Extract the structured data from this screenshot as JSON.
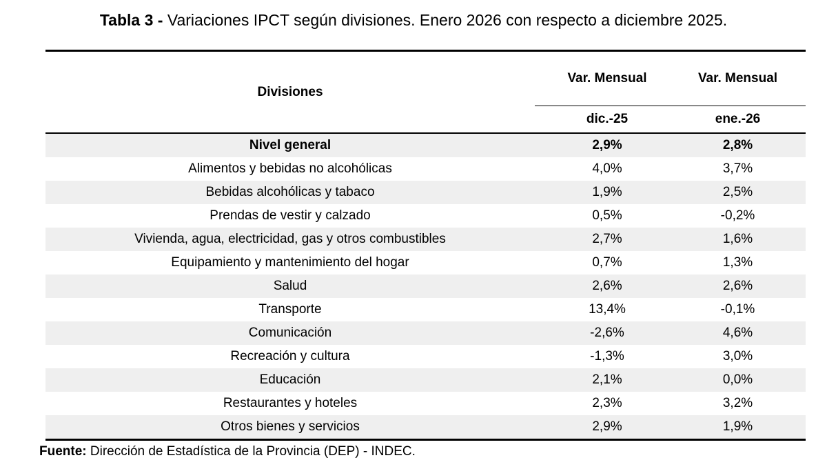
{
  "title": {
    "lead": "Tabla 3 -",
    "text": "Variaciones IPCT según divisiones. Enero 2026 con respecto a diciembre 2025."
  },
  "table": {
    "header": {
      "divisions": "Divisiones",
      "col1_top": "Var. Mensual",
      "col2_top": "Var. Mensual",
      "col1_sub": "dic.-25",
      "col2_sub": "ene.-26"
    },
    "rows": [
      {
        "division": "Nivel general",
        "dic": "2,9%",
        "ene": "2,8%"
      },
      {
        "division": "Alimentos y bebidas no alcohólicas",
        "dic": "4,0%",
        "ene": "3,7%"
      },
      {
        "division": "Bebidas alcohólicas y tabaco",
        "dic": "1,9%",
        "ene": "2,5%"
      },
      {
        "division": "Prendas de vestir y calzado",
        "dic": "0,5%",
        "ene": "-0,2%"
      },
      {
        "division": "Vivienda, agua, electricidad, gas y otros combustibles",
        "dic": "2,7%",
        "ene": "1,6%"
      },
      {
        "division": "Equipamiento y mantenimiento del hogar",
        "dic": "0,7%",
        "ene": "1,3%"
      },
      {
        "division": "Salud",
        "dic": "2,6%",
        "ene": "2,6%"
      },
      {
        "division": "Transporte",
        "dic": "13,4%",
        "ene": "-0,1%"
      },
      {
        "division": "Comunicación",
        "dic": "-2,6%",
        "ene": "4,6%"
      },
      {
        "division": "Recreación y cultura",
        "dic": "-1,3%",
        "ene": "3,0%"
      },
      {
        "division": "Educación",
        "dic": "2,1%",
        "ene": "0,0%"
      },
      {
        "division": "Restaurantes y hoteles",
        "dic": "2,3%",
        "ene": "3,2%"
      },
      {
        "division": "Otros bienes y servicios",
        "dic": "2,9%",
        "ene": "1,9%"
      }
    ]
  },
  "source": {
    "label": "Fuente:",
    "text": "Dirección de Estadística de la Provincia (DEP) - INDEC."
  }
}
